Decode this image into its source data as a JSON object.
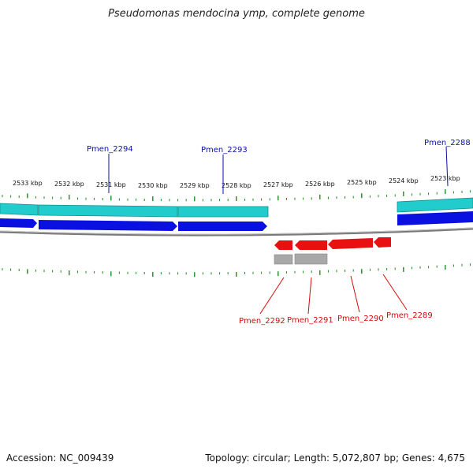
{
  "title": "Pseudomonas mendocina ymp, complete genome",
  "footer": {
    "accession_label": "Accession: NC_009439",
    "stats_label": "Topology: circular; Length: 5,072,807 bp; Genes: 4,675"
  },
  "colors": {
    "tick_green": "#1e8c1e",
    "cds_forward": "#0a10e0",
    "gene_forward": "#22cccc",
    "cds_reverse": "#e81010",
    "gene_reverse": "#a8a8a8",
    "label_forward": "#0a10a8",
    "label_reverse": "#d40a0a",
    "backbone": "#7a7a7a"
  },
  "kbp_labels": [
    "2533 kbp",
    "2532 kbp",
    "2531 kbp",
    "2530 kbp",
    "2529 kbp",
    "2528 kbp",
    "2527 kbp",
    "2526 kbp",
    "2525 kbp",
    "2524 kbp",
    "2523 kbp"
  ],
  "forward_genes": [
    "Pmen_2294",
    "Pmen_2293",
    "Pmen_2288"
  ],
  "reverse_genes": [
    "Pmen_2292",
    "Pmen_2291",
    "Pmen_2290",
    "Pmen_2289"
  ]
}
